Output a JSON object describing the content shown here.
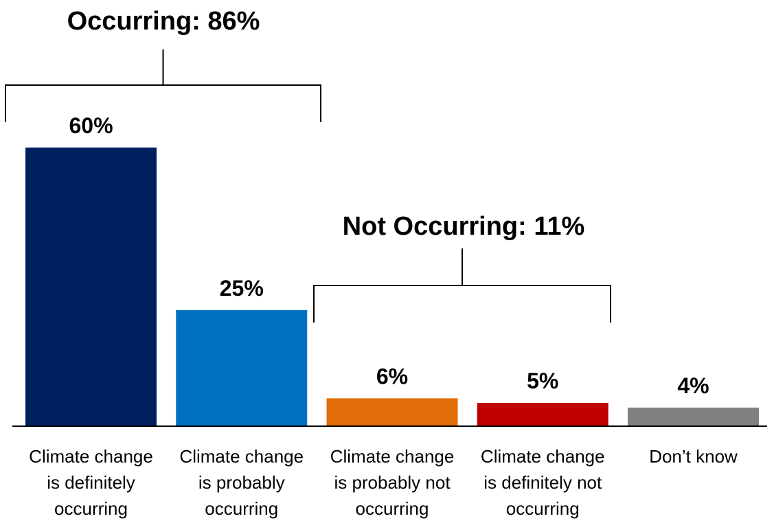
{
  "chart_data": {
    "type": "bar",
    "categories": [
      [
        "Climate change",
        "is definitely",
        "occurring"
      ],
      [
        "Climate change",
        "is probably",
        "occurring"
      ],
      [
        "Climate change",
        "is probably not",
        "occurring"
      ],
      [
        "Climate change",
        "is definitely not",
        "occurring"
      ],
      [
        "Don’t know"
      ]
    ],
    "values": [
      60,
      25,
      6,
      5,
      4
    ],
    "value_labels": [
      "60%",
      "25%",
      "6%",
      "5%",
      "4%"
    ],
    "colors": [
      "#002060",
      "#0070C0",
      "#E36C0A",
      "#C00000",
      "#808080"
    ],
    "ylim": [
      0,
      60
    ],
    "grid": false,
    "title": "",
    "xlabel": "",
    "ylabel": "",
    "groups": [
      {
        "label": "Occurring: 86%",
        "start_index": 0,
        "end_index": 1
      },
      {
        "label": "Not Occurring: 11%",
        "start_index": 2,
        "end_index": 3
      }
    ]
  }
}
